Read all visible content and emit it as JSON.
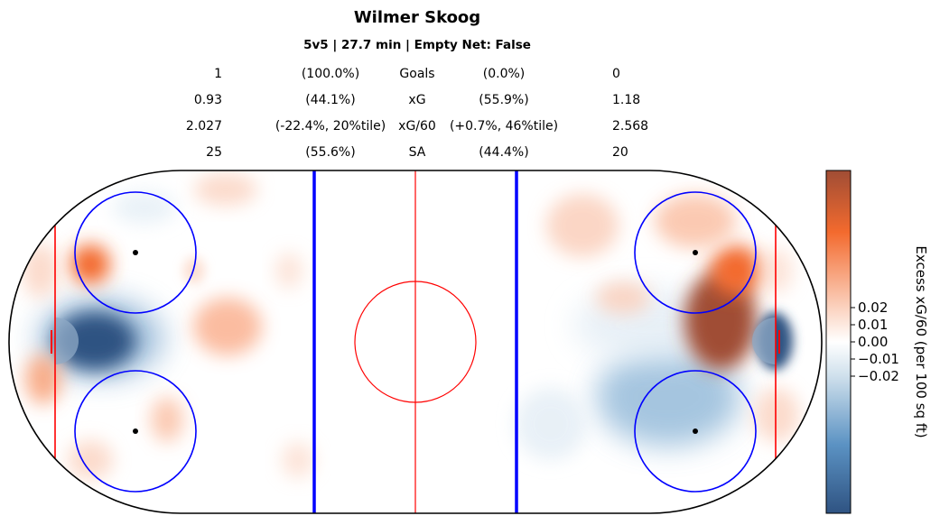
{
  "chart_data": {
    "type": "heatmap",
    "title": "Wilmer Skoog",
    "subtitle": "5v5 | 27.7 min | Empty Net: False",
    "stats": [
      {
        "left": "1",
        "left_pct": "(100.0%)",
        "label": "Goals",
        "right_pct": "(0.0%)",
        "right": "0"
      },
      {
        "left": "0.93",
        "left_pct": "(44.1%)",
        "label": "xG",
        "right_pct": "(55.9%)",
        "right": "1.18"
      },
      {
        "left": "2.027",
        "left_pct": "(-22.4%, 20%tile)",
        "label": "xG/60",
        "right_pct": "(+0.7%, 46%tile)",
        "right": "2.568"
      },
      {
        "left": "25",
        "left_pct": "(55.6%)",
        "label": "SA",
        "right_pct": "(44.4%)",
        "right": "20"
      }
    ],
    "colorbar": {
      "label": "Excess xG/60 (per 100 sq ft)",
      "ticks": [
        "0.02",
        "0.01",
        "0.00",
        "−0.01",
        "−0.02"
      ],
      "tick_values": [
        0.02,
        0.01,
        0.0,
        -0.01,
        -0.02
      ],
      "range": [
        -0.1,
        0.1
      ],
      "colors": [
        "#2f5382",
        "#5b92c3",
        "#cfe0ec",
        "#ffffff",
        "#fbd2bf",
        "#f36a2e",
        "#a04d35"
      ]
    },
    "heat_blobs": [
      {
        "side": "left",
        "value": 0.06,
        "desc": "top-left strong"
      },
      {
        "side": "left",
        "value": -0.1,
        "desc": "slot dark blue"
      },
      {
        "side": "left",
        "value": 0.03,
        "desc": "neutral zone orange"
      },
      {
        "side": "left",
        "value": 0.03,
        "desc": "bottom orange patches"
      },
      {
        "side": "right",
        "value": 0.1,
        "desc": "slot dark orange"
      },
      {
        "side": "right",
        "value": -0.1,
        "desc": "crease dark blue"
      },
      {
        "side": "right",
        "value": -0.04,
        "desc": "lower blue"
      },
      {
        "side": "right",
        "value": 0.03,
        "desc": "upper orange"
      }
    ]
  }
}
